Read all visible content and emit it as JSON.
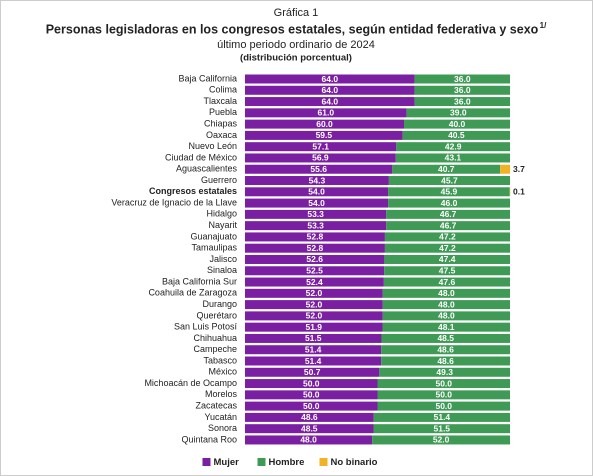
{
  "chart_data": {
    "type": "stacked_barh",
    "label": "Gráfica 1",
    "title": "Personas legisladoras en los congresos estatales, según entidad federativa y sexo",
    "title_sup": "1/",
    "subtitle": "último periodo ordinario de 2024",
    "unit_note": "(distribución porcentual)",
    "xlim": [
      0,
      100
    ],
    "highlight_index": 10,
    "categories": [
      "Baja California",
      "Colima",
      "Tlaxcala",
      "Puebla",
      "Chiapas",
      "Oaxaca",
      "Nuevo León",
      "Ciudad de México",
      "Aguascalientes",
      "Guerrero",
      "Congresos estatales",
      "Veracruz de Ignacio de la Llave",
      "Hidalgo",
      "Nayarit",
      "Guanajuato",
      "Tamaulipas",
      "Jalisco",
      "Sinaloa",
      "Baja California Sur",
      "Coahuila de Zaragoza",
      "Durango",
      "Querétaro",
      "San Luis Potosí",
      "Chihuahua",
      "Campeche",
      "Tabasco",
      "México",
      "Michoacán de Ocampo",
      "Morelos",
      "Zacatecas",
      "Yucatán",
      "Sonora",
      "Quintana Roo"
    ],
    "series": [
      {
        "name": "Mujer",
        "color": "#7b1fa2",
        "values": [
          64.0,
          64.0,
          64.0,
          61.0,
          60.0,
          59.5,
          57.1,
          56.9,
          55.6,
          54.3,
          54.0,
          54.0,
          53.3,
          53.3,
          52.8,
          52.8,
          52.6,
          52.5,
          52.4,
          52.0,
          52.0,
          52.0,
          51.9,
          51.5,
          51.4,
          51.4,
          50.7,
          50.0,
          50.0,
          50.0,
          48.6,
          48.5,
          48.0
        ],
        "value_labels": [
          "64.0",
          "64.0",
          "64.0",
          "61.0",
          "60.0",
          "59.5",
          "57.1",
          "56.9",
          "55.6",
          "54.3",
          "54.0",
          "54.0",
          "53.3",
          "53.3",
          "52.8",
          "52.8",
          "52.6",
          "52.5",
          "52.4",
          "52.0",
          "52.0",
          "52.0",
          "51.9",
          "51.5",
          "51.4",
          "51.4",
          "50.7",
          "50.0",
          "50.0",
          "50.0",
          "48.6",
          "48.5",
          "48.0"
        ]
      },
      {
        "name": "Hombre",
        "color": "#3f9a55",
        "values": [
          36.0,
          36.0,
          36.0,
          39.0,
          40.0,
          40.5,
          42.9,
          43.1,
          40.7,
          45.7,
          45.9,
          46.0,
          46.7,
          46.7,
          47.2,
          47.2,
          47.4,
          47.5,
          47.6,
          48.0,
          48.0,
          48.0,
          48.1,
          48.5,
          48.6,
          48.6,
          49.3,
          50.0,
          50.0,
          50.0,
          51.4,
          51.5,
          52.0
        ],
        "value_labels": [
          "36.0",
          "36.0",
          "36.0",
          "39.0",
          "40.0",
          "40.5",
          "42.9",
          "43.1",
          "40.7",
          "45.7",
          "45.9",
          "46.0",
          "46.7",
          "46.7",
          "47.2",
          "47.2",
          "47.4",
          "47.5",
          "47.6",
          "48.0",
          "48.0",
          "48.0",
          "48.1",
          "48.5",
          "48.6",
          "48.6",
          "49.3",
          "50.0",
          "50.0",
          "50.0",
          "51.4",
          "51.5",
          "52.0"
        ]
      },
      {
        "name": "No binario",
        "color": "#f0b323",
        "values": [
          null,
          null,
          null,
          null,
          null,
          null,
          null,
          null,
          3.7,
          null,
          0.1,
          null,
          null,
          null,
          null,
          null,
          null,
          null,
          null,
          null,
          null,
          null,
          null,
          null,
          null,
          null,
          null,
          null,
          null,
          null,
          null,
          null,
          null
        ]
      }
    ]
  }
}
